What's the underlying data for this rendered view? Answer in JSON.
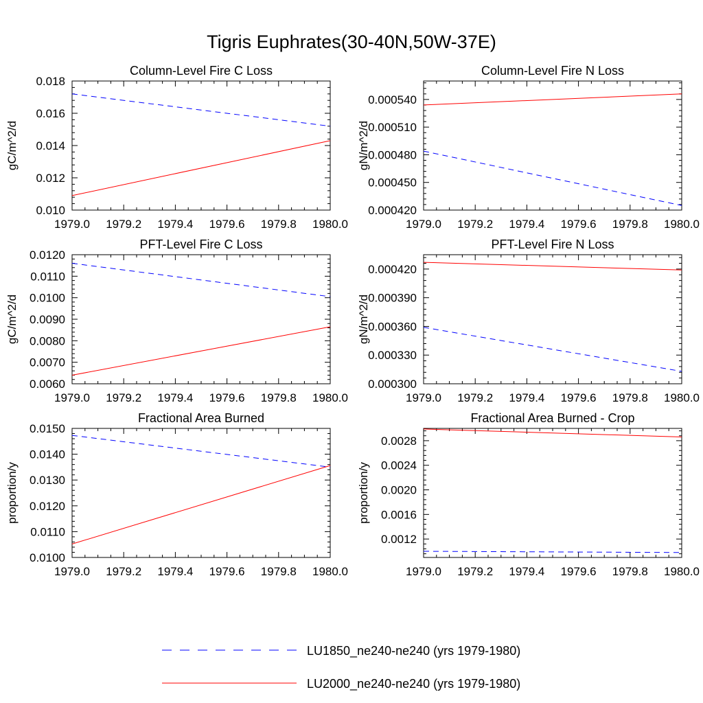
{
  "figure": {
    "title": "Tigris Euphrates(30-40N,50W-37E)"
  },
  "legend": {
    "position": "bottom",
    "entries": [
      {
        "label": "LU1850_ne240-ne240 (yrs 1979-1980)",
        "color": "#0000ff",
        "style": "dashed"
      },
      {
        "label": "LU2000_ne240-ne240 (yrs 1979-1980)",
        "color": "#ff0000",
        "style": "solid"
      }
    ]
  },
  "chart_data": [
    {
      "type": "line",
      "title": "Column-Level Fire C Loss",
      "xlabel": "",
      "ylabel": "gC/m^2/d",
      "xlim": [
        1979.0,
        1980.0
      ],
      "ylim": [
        0.01,
        0.018
      ],
      "xticks": [
        "1979.0",
        "1979.2",
        "1979.4",
        "1979.6",
        "1979.8",
        "1980.0"
      ],
      "yticks": [
        "0.010",
        "0.012",
        "0.014",
        "0.016",
        "0.018"
      ],
      "x": [
        1979.0,
        1980.0
      ],
      "series": [
        {
          "name": "LU1850_ne240-ne240 (yrs 1979-1980)",
          "values": [
            0.0172,
            0.0152
          ]
        },
        {
          "name": "LU2000_ne240-ne240 (yrs 1979-1980)",
          "values": [
            0.0109,
            0.0143
          ]
        }
      ]
    },
    {
      "type": "line",
      "title": "Column-Level Fire N Loss",
      "xlabel": "",
      "ylabel": "gN/m^2/d",
      "xlim": [
        1979.0,
        1980.0
      ],
      "ylim": [
        0.00042,
        0.00056
      ],
      "xticks": [
        "1979.0",
        "1979.2",
        "1979.4",
        "1979.6",
        "1979.8",
        "1980.0"
      ],
      "yticks": [
        "0.000420",
        "0.000450",
        "0.000480",
        "0.000510",
        "0.000540"
      ],
      "x": [
        1979.0,
        1980.0
      ],
      "series": [
        {
          "name": "LU1850_ne240-ne240 (yrs 1979-1980)",
          "values": [
            0.000484,
            0.000425
          ]
        },
        {
          "name": "LU2000_ne240-ne240 (yrs 1979-1980)",
          "values": [
            0.000534,
            0.000546
          ]
        }
      ]
    },
    {
      "type": "line",
      "title": "PFT-Level Fire C Loss",
      "xlabel": "",
      "ylabel": "gC/m^2/d",
      "xlim": [
        1979.0,
        1980.0
      ],
      "ylim": [
        0.006,
        0.012
      ],
      "xticks": [
        "1979.0",
        "1979.2",
        "1979.4",
        "1979.6",
        "1979.8",
        "1980.0"
      ],
      "yticks": [
        "0.0060",
        "0.0070",
        "0.0080",
        "0.0090",
        "0.0100",
        "0.0110",
        "0.0120"
      ],
      "x": [
        1979.0,
        1980.0
      ],
      "series": [
        {
          "name": "LU1850_ne240-ne240 (yrs 1979-1980)",
          "values": [
            0.0116,
            0.01005
          ]
        },
        {
          "name": "LU2000_ne240-ne240 (yrs 1979-1980)",
          "values": [
            0.0064,
            0.00865
          ]
        }
      ]
    },
    {
      "type": "line",
      "title": "PFT-Level Fire N Loss",
      "xlabel": "",
      "ylabel": "gN/m^2/d",
      "xlim": [
        1979.0,
        1980.0
      ],
      "ylim": [
        0.0003,
        0.000435
      ],
      "xticks": [
        "1979.0",
        "1979.2",
        "1979.4",
        "1979.6",
        "1979.8",
        "1980.0"
      ],
      "yticks": [
        "0.000300",
        "0.000330",
        "0.000360",
        "0.000390",
        "0.000420"
      ],
      "x": [
        1979.0,
        1980.0
      ],
      "series": [
        {
          "name": "LU1850_ne240-ne240 (yrs 1979-1980)",
          "values": [
            0.000359,
            0.000313
          ]
        },
        {
          "name": "LU2000_ne240-ne240 (yrs 1979-1980)",
          "values": [
            0.000427,
            0.000419
          ]
        }
      ]
    },
    {
      "type": "line",
      "title": "Fractional Area Burned",
      "xlabel": "",
      "ylabel": "proportion/y",
      "xlim": [
        1979.0,
        1980.0
      ],
      "ylim": [
        0.01,
        0.015
      ],
      "xticks": [
        "1979.0",
        "1979.2",
        "1979.4",
        "1979.6",
        "1979.8",
        "1980.0"
      ],
      "yticks": [
        "0.0100",
        "0.0110",
        "0.0120",
        "0.0130",
        "0.0140",
        "0.0150"
      ],
      "x": [
        1979.0,
        1980.0
      ],
      "series": [
        {
          "name": "LU1850_ne240-ne240 (yrs 1979-1980)",
          "values": [
            0.01473,
            0.0135
          ]
        },
        {
          "name": "LU2000_ne240-ne240 (yrs 1979-1980)",
          "values": [
            0.01052,
            0.01356
          ]
        }
      ]
    },
    {
      "type": "line",
      "title": "Fractional Area Burned - Crop",
      "xlabel": "",
      "ylabel": "proportion/y",
      "xlim": [
        1979.0,
        1980.0
      ],
      "ylim": [
        0.0009,
        0.003
      ],
      "xticks": [
        "1979.0",
        "1979.2",
        "1979.4",
        "1979.6",
        "1979.8",
        "1980.0"
      ],
      "yticks": [
        "0.0012",
        "0.0016",
        "0.0020",
        "0.0024",
        "0.0028"
      ],
      "x": [
        1979.0,
        1980.0
      ],
      "series": [
        {
          "name": "LU1850_ne240-ne240 (yrs 1979-1980)",
          "values": [
            0.001,
            0.00098
          ]
        },
        {
          "name": "LU2000_ne240-ne240 (yrs 1979-1980)",
          "values": [
            0.00299,
            0.00286
          ]
        }
      ]
    }
  ]
}
